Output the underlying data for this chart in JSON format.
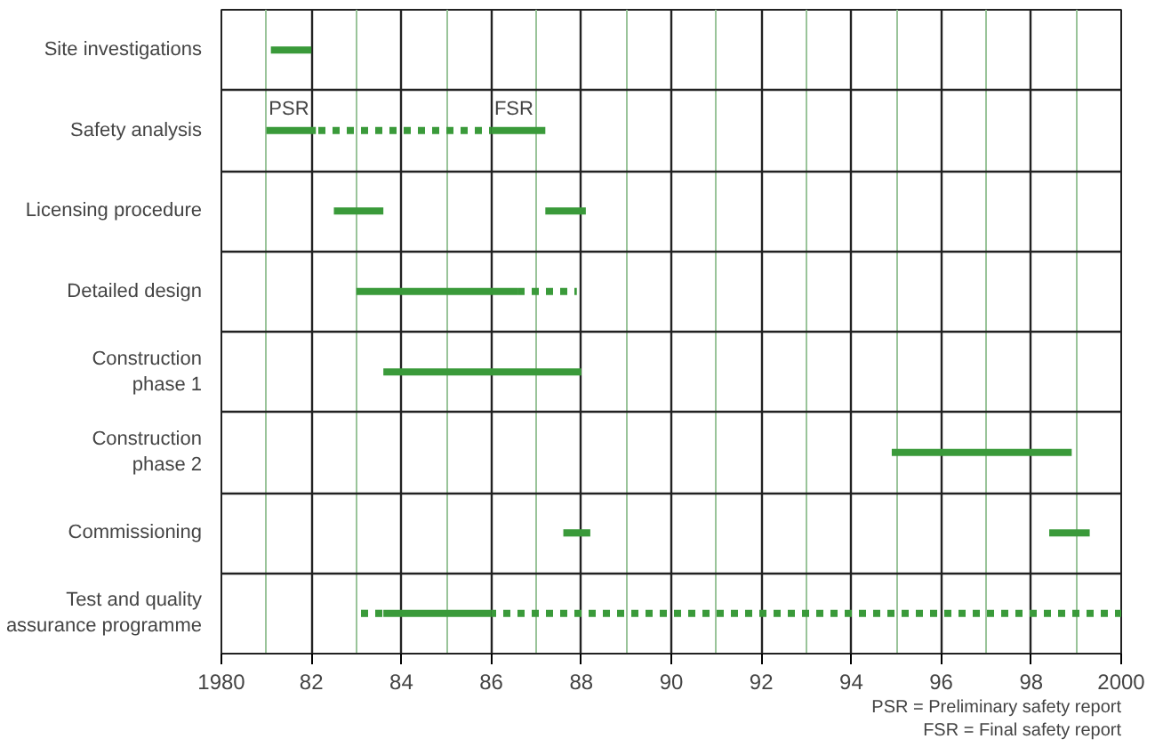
{
  "chart_data": {
    "type": "bar",
    "orientation": "horizontal",
    "categories": [
      "Site investigations",
      "Safety analysis",
      "Licensing procedure",
      "Detailed design",
      "Construction\nphase 1",
      "Construction\nphase 2",
      "Commissioning",
      "Test and quality\nassurance programme"
    ],
    "series": [
      {
        "color": "#3a9a3a",
        "line_style": "solid",
        "base": [
          1981.1,
          1981.0,
          1982.5,
          1983.0,
          1983.6,
          1994.9,
          1987.6,
          1983.6
        ],
        "values": [
          0.9,
          1.1,
          1.1,
          3.6,
          4.4,
          4.0,
          0.6,
          2.4
        ]
      },
      {
        "color": "#3a9a3a",
        "line_style": "dotted",
        "base": [
          null,
          1982.1,
          null,
          1986.6,
          null,
          null,
          null,
          1986.0
        ],
        "values": [
          null,
          3.9,
          null,
          1.3,
          null,
          null,
          null,
          14.0
        ]
      },
      {
        "color": "#3a9a3a",
        "line_style": "solid",
        "base": [
          null,
          1986.0,
          1987.2,
          null,
          null,
          null,
          1998.4,
          null
        ],
        "values": [
          null,
          1.2,
          0.9,
          null,
          null,
          null,
          0.9,
          null
        ]
      },
      {
        "color": "#3a9a3a",
        "line_style": "dotted",
        "base": [
          null,
          null,
          null,
          null,
          null,
          null,
          null,
          1983.0
        ],
        "values": [
          null,
          null,
          null,
          null,
          null,
          null,
          null,
          0.6
        ]
      }
    ],
    "xlim": [
      1980,
      2000
    ],
    "xticks": [
      1980,
      {
        "value": 1981,
        "label": null
      },
      {
        "value": 1982,
        "label": "82"
      },
      {
        "value": 1983,
        "label": null
      },
      {
        "value": 1984,
        "label": "84"
      },
      {
        "value": 1985,
        "label": null
      },
      {
        "value": 1986,
        "label": "86"
      },
      {
        "value": 1987,
        "label": null
      },
      {
        "value": 1988,
        "label": "88"
      },
      {
        "value": 1989,
        "label": null
      },
      {
        "value": 1990,
        "label": "90"
      },
      {
        "value": 1991,
        "label": null
      },
      {
        "value": 1992,
        "label": "92"
      },
      {
        "value": 1993,
        "label": null
      },
      {
        "value": 1994,
        "label": "94"
      },
      {
        "value": 1995,
        "label": null
      },
      {
        "value": 1996,
        "label": "96"
      },
      {
        "value": 1997,
        "label": null
      },
      {
        "value": 1998,
        "label": "98"
      },
      {
        "value": 1999,
        "label": null
      },
      2000
    ],
    "grid": "x",
    "annotations": [
      {
        "text": "PSR",
        "x": 1981.5,
        "y": "Safety analysis"
      },
      {
        "text": "FSR",
        "x": 1986.5,
        "y": "Safety analysis"
      },
      "PSR = Preliminary safety report",
      "FSR = Final safety report"
    ]
  }
}
